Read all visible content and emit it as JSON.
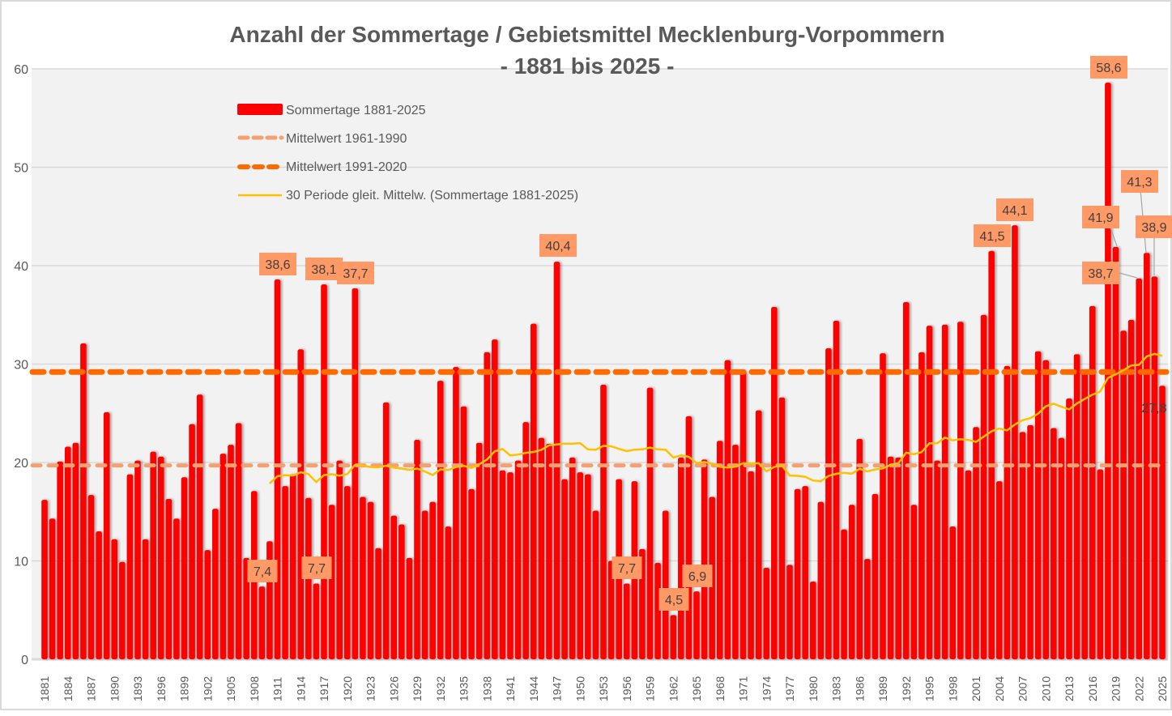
{
  "chart_data": {
    "type": "bar",
    "title": "Anzahl der Sommertage / Gebietsmittel Mecklenburg-Vorpommern",
    "subtitle": "- 1881 bis 2025 -",
    "xlabel": "",
    "ylabel": "",
    "ylim": [
      0,
      60
    ],
    "yticks": [
      0,
      10,
      20,
      30,
      40,
      50,
      60
    ],
    "grid": true,
    "legend_position": "top-left",
    "x_start": 1881,
    "x_end": 2025,
    "xtick_step": 3,
    "series": [
      {
        "name": "Sommertage 1881-2025",
        "type": "bar",
        "color": "#ff0000",
        "values": [
          16.2,
          14.3,
          20.1,
          21.6,
          22.0,
          32.1,
          16.7,
          13.0,
          25.1,
          12.2,
          9.9,
          18.8,
          20.2,
          12.2,
          21.1,
          20.6,
          16.3,
          14.3,
          18.5,
          23.9,
          26.9,
          11.1,
          15.3,
          20.9,
          21.8,
          24.0,
          10.3,
          17.1,
          7.4,
          12.0,
          38.6,
          17.6,
          18.8,
          31.5,
          16.4,
          7.7,
          38.1,
          15.7,
          20.2,
          17.6,
          37.7,
          16.5,
          16.0,
          11.3,
          26.1,
          14.6,
          13.7,
          10.3,
          22.3,
          15.1,
          16.0,
          28.3,
          13.5,
          29.7,
          25.7,
          17.3,
          22.0,
          31.2,
          32.5,
          19.2,
          19.0,
          20.2,
          24.1,
          34.1,
          22.5,
          21.9,
          40.4,
          18.3,
          20.5,
          19.0,
          18.8,
          15.1,
          27.9,
          10.0,
          18.3,
          7.7,
          18.1,
          11.2,
          27.6,
          9.8,
          15.1,
          4.5,
          20.5,
          24.7,
          6.9,
          20.3,
          16.5,
          22.2,
          30.4,
          21.8,
          29.3,
          19.1,
          25.3,
          9.3,
          35.8,
          26.6,
          9.6,
          17.3,
          17.6,
          7.9,
          16.0,
          31.6,
          34.4,
          13.2,
          15.7,
          22.4,
          10.2,
          16.8,
          31.1,
          20.6,
          20.5,
          36.3,
          15.7,
          31.2,
          33.9,
          20.2,
          34.0,
          13.5,
          34.3,
          19.2,
          23.6,
          35.0,
          41.5,
          18.1,
          29.8,
          44.1,
          23.1,
          23.8,
          31.3,
          30.4,
          23.5,
          22.5,
          26.5,
          31.0,
          29.4,
          35.9,
          19.3,
          58.6,
          41.9,
          33.4,
          34.5,
          38.7,
          41.3,
          38.9,
          27.8
        ]
      },
      {
        "name": "Mittelwert 1961-1990",
        "type": "hline",
        "value": 19.7,
        "color": "#f4a070"
      },
      {
        "name": "Mittelwert 1991-2020",
        "type": "hline",
        "value": 29.2,
        "color": "#ff6a00"
      },
      {
        "name": "30 Periode gleit. Mittelw. (Sommertage 1881-2025)",
        "type": "moving_average",
        "period": 30,
        "color": "#ffc000"
      }
    ],
    "data_labels": [
      {
        "year": 1909,
        "text": "7,4"
      },
      {
        "year": 1911,
        "text": "38,6"
      },
      {
        "year": 1916,
        "text": "7,7"
      },
      {
        "year": 1917,
        "text": "38,1"
      },
      {
        "year": 1921,
        "text": "37,7"
      },
      {
        "year": 1947,
        "text": "40,4"
      },
      {
        "year": 1956,
        "text": "7,7"
      },
      {
        "year": 1962,
        "text": "4,5"
      },
      {
        "year": 1965,
        "text": "6,9"
      },
      {
        "year": 2003,
        "text": "41,5"
      },
      {
        "year": 2006,
        "text": "44,1"
      },
      {
        "year": 2018,
        "text": "58,6"
      },
      {
        "year": 2019,
        "text": "41,9"
      },
      {
        "year": 2022,
        "text": "38,7"
      },
      {
        "year": 2023,
        "text": "41,3"
      },
      {
        "year": 2024,
        "text": "38,9"
      },
      {
        "year": 2025,
        "text": "27,8"
      }
    ],
    "label_box_color": "#ff9966"
  }
}
